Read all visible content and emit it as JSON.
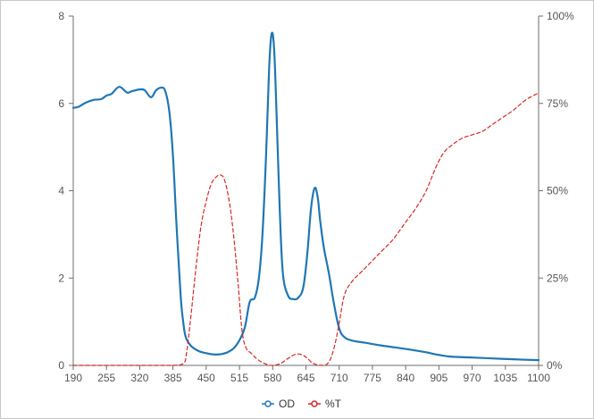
{
  "chart_data": {
    "type": "line",
    "title": "",
    "xlabel": "",
    "ylabel": "",
    "y2label": "",
    "xlim": [
      190,
      1100
    ],
    "ylim": [
      0,
      8
    ],
    "y2lim": [
      0,
      100
    ],
    "x_ticks": [
      "190",
      "255",
      "320",
      "385",
      "450",
      "515",
      "580",
      "645",
      "710",
      "775",
      "840",
      "905",
      "970",
      "1035",
      "1100"
    ],
    "y_ticks": [
      "0",
      "2",
      "4",
      "6",
      "8"
    ],
    "y2_ticks": [
      "0%",
      "25%",
      "50%",
      "75%",
      "100%"
    ],
    "grid": false,
    "legend": {
      "placement": "bottom-center"
    },
    "series": [
      {
        "name": "OD",
        "axis": "left",
        "color": "#1f77b4",
        "style": "solid",
        "points": [
          [
            190,
            5.9
          ],
          [
            200,
            5.92
          ],
          [
            215,
            6.02
          ],
          [
            230,
            6.08
          ],
          [
            245,
            6.1
          ],
          [
            255,
            6.18
          ],
          [
            265,
            6.22
          ],
          [
            280,
            6.38
          ],
          [
            295,
            6.25
          ],
          [
            305,
            6.28
          ],
          [
            320,
            6.32
          ],
          [
            330,
            6.3
          ],
          [
            342,
            6.14
          ],
          [
            352,
            6.3
          ],
          [
            362,
            6.36
          ],
          [
            370,
            6.28
          ],
          [
            378,
            5.8
          ],
          [
            385,
            4.8
          ],
          [
            392,
            3.2
          ],
          [
            400,
            1.6
          ],
          [
            405,
            1.0
          ],
          [
            410,
            0.65
          ],
          [
            420,
            0.45
          ],
          [
            435,
            0.33
          ],
          [
            450,
            0.28
          ],
          [
            465,
            0.25
          ],
          [
            480,
            0.26
          ],
          [
            495,
            0.32
          ],
          [
            510,
            0.48
          ],
          [
            525,
            0.85
          ],
          [
            535,
            1.45
          ],
          [
            545,
            1.55
          ],
          [
            553,
            2.0
          ],
          [
            560,
            3.0
          ],
          [
            567,
            4.8
          ],
          [
            573,
            6.8
          ],
          [
            578,
            7.6
          ],
          [
            583,
            7.2
          ],
          [
            588,
            5.6
          ],
          [
            594,
            3.5
          ],
          [
            600,
            2.1
          ],
          [
            610,
            1.6
          ],
          [
            620,
            1.52
          ],
          [
            630,
            1.55
          ],
          [
            640,
            1.8
          ],
          [
            648,
            2.6
          ],
          [
            655,
            3.6
          ],
          [
            662,
            4.06
          ],
          [
            668,
            3.85
          ],
          [
            673,
            3.3
          ],
          [
            680,
            2.7
          ],
          [
            690,
            2.1
          ],
          [
            700,
            1.4
          ],
          [
            710,
            0.85
          ],
          [
            720,
            0.65
          ],
          [
            735,
            0.57
          ],
          [
            760,
            0.52
          ],
          [
            790,
            0.46
          ],
          [
            820,
            0.41
          ],
          [
            850,
            0.36
          ],
          [
            880,
            0.3
          ],
          [
            905,
            0.24
          ],
          [
            930,
            0.2
          ],
          [
            970,
            0.18
          ],
          [
            1010,
            0.16
          ],
          [
            1050,
            0.14
          ],
          [
            1100,
            0.12
          ]
        ]
      },
      {
        "name": "%T",
        "axis": "right",
        "color": "#d62728",
        "style": "dashed",
        "points": [
          [
            190,
            0
          ],
          [
            300,
            0
          ],
          [
            380,
            0
          ],
          [
            405,
            0.5
          ],
          [
            412,
            4
          ],
          [
            420,
            14
          ],
          [
            430,
            28
          ],
          [
            440,
            40
          ],
          [
            450,
            47
          ],
          [
            460,
            52
          ],
          [
            470,
            54
          ],
          [
            478,
            54.5
          ],
          [
            486,
            53
          ],
          [
            495,
            47
          ],
          [
            503,
            38
          ],
          [
            512,
            24
          ],
          [
            520,
            10
          ],
          [
            528,
            5
          ],
          [
            538,
            3.5
          ],
          [
            548,
            2
          ],
          [
            558,
            1
          ],
          [
            570,
            0.2
          ],
          [
            580,
            0
          ],
          [
            595,
            0.5
          ],
          [
            610,
            2
          ],
          [
            625,
            3.2
          ],
          [
            638,
            3
          ],
          [
            648,
            2
          ],
          [
            660,
            0.5
          ],
          [
            678,
            0
          ],
          [
            690,
            1
          ],
          [
            700,
            5
          ],
          [
            710,
            12
          ],
          [
            720,
            20
          ],
          [
            735,
            24
          ],
          [
            755,
            27
          ],
          [
            775,
            30
          ],
          [
            795,
            33
          ],
          [
            815,
            36
          ],
          [
            840,
            41
          ],
          [
            860,
            45
          ],
          [
            880,
            50
          ],
          [
            900,
            57
          ],
          [
            915,
            61
          ],
          [
            930,
            63
          ],
          [
            950,
            65
          ],
          [
            970,
            66
          ],
          [
            990,
            67
          ],
          [
            1010,
            69
          ],
          [
            1030,
            71
          ],
          [
            1050,
            73
          ],
          [
            1075,
            76
          ],
          [
            1100,
            78
          ]
        ]
      }
    ]
  }
}
